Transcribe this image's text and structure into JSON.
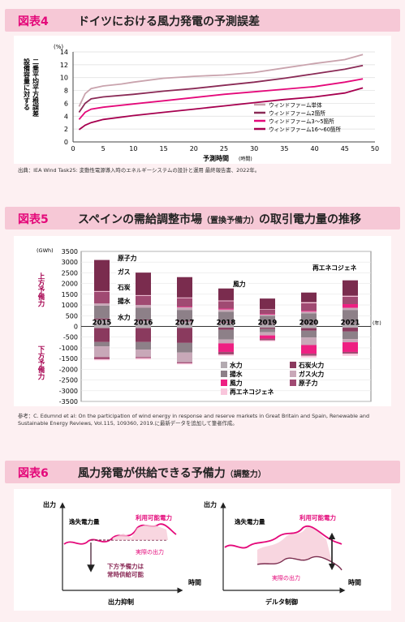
{
  "fig4": {
    "number": "図表4",
    "title": "ドイツにおける風力発電の予測誤差",
    "source": "出典：IEA Wind Task25: 変動性電源導入時のエネルギーシステムの設計と運用 最終報告書、2022年。",
    "chart_data": {
      "type": "line",
      "ylabel": "二乗平均平方根誤差 設備容量に対する",
      "yunit": "(%)",
      "xlabel": "予測時間",
      "xunit": "(時間)",
      "xlim": [
        0,
        50
      ],
      "ylim": [
        0,
        14
      ],
      "xticks": [
        0,
        5,
        10,
        15,
        20,
        25,
        30,
        35,
        40,
        45,
        50
      ],
      "yticks": [
        0,
        2,
        4,
        6,
        8,
        10,
        12,
        14
      ],
      "legend_position": "bottom-right",
      "series": [
        {
          "name": "ウィンドファーム単体",
          "color": "#c9a3ad",
          "points": [
            [
              1,
              5.5
            ],
            [
              2,
              7.5
            ],
            [
              3,
              8.3
            ],
            [
              5,
              8.7
            ],
            [
              8,
              9.0
            ],
            [
              10,
              9.3
            ],
            [
              15,
              9.9
            ],
            [
              20,
              10.2
            ],
            [
              25,
              10.4
            ],
            [
              30,
              10.8
            ],
            [
              35,
              11.5
            ],
            [
              40,
              12.2
            ],
            [
              45,
              12.8
            ],
            [
              48,
              13.6
            ]
          ]
        },
        {
          "name": "ウィンドファーム2箇所",
          "color": "#8a2a56",
          "points": [
            [
              1,
              4.6
            ],
            [
              2,
              6.0
            ],
            [
              3,
              6.7
            ],
            [
              5,
              7.0
            ],
            [
              10,
              7.4
            ],
            [
              15,
              7.9
            ],
            [
              20,
              8.3
            ],
            [
              25,
              8.8
            ],
            [
              30,
              9.3
            ],
            [
              35,
              9.9
            ],
            [
              40,
              10.6
            ],
            [
              45,
              11.3
            ],
            [
              48,
              11.9
            ]
          ]
        },
        {
          "name": "ウィンドファーム3～5箇所",
          "color": "#e4097a",
          "points": [
            [
              1,
              3.5
            ],
            [
              2,
              4.6
            ],
            [
              3,
              5.1
            ],
            [
              5,
              5.4
            ],
            [
              10,
              5.9
            ],
            [
              15,
              6.4
            ],
            [
              20,
              6.9
            ],
            [
              25,
              7.4
            ],
            [
              30,
              7.8
            ],
            [
              35,
              8.2
            ],
            [
              40,
              8.6
            ],
            [
              45,
              9.3
            ],
            [
              48,
              9.8
            ]
          ]
        },
        {
          "name": "ウィンドファーム16～60箇所",
          "color": "#a6004f",
          "points": [
            [
              1,
              1.9
            ],
            [
              2,
              2.6
            ],
            [
              3,
              3.0
            ],
            [
              5,
              3.5
            ],
            [
              10,
              4.1
            ],
            [
              15,
              4.6
            ],
            [
              20,
              5.1
            ],
            [
              25,
              5.6
            ],
            [
              30,
              6.1
            ],
            [
              35,
              6.6
            ],
            [
              40,
              7.0
            ],
            [
              45,
              7.6
            ],
            [
              48,
              8.4
            ]
          ]
        }
      ]
    }
  },
  "fig5": {
    "number": "図表5",
    "title": "スペインの需給調整市場",
    "title_small": "（置換予備力）",
    "title_tail": "の取引電力量の推移",
    "source": "参考：C. Edumnd et al: On the participation of wind energy in response and reserve markets in Great Britain and Spain, Renewable and Sustainable Energy Reviews, Vol.115, 109360, 2019.に最新データを追加して筆者作成。",
    "chart_data": {
      "type": "bar",
      "stacked": true,
      "yunit": "(GWh)",
      "xunit": "(年)",
      "ylim": [
        -3500,
        3500
      ],
      "yticks": [
        3500,
        3000,
        2500,
        2000,
        1500,
        1000,
        500,
        0,
        -500,
        -1000,
        -1500,
        -2000,
        -2500,
        -3000,
        -3500
      ],
      "upper_label": "上方予備力",
      "lower_label": "下方予備力",
      "categories": [
        "2015",
        "2016",
        "2017",
        "2018",
        "2019",
        "2020",
        "2021"
      ],
      "series": [
        {
          "name": "水力",
          "color": "#b3aab0",
          "up": [
            320,
            280,
            230,
            180,
            120,
            120,
            160
          ],
          "down": [
            -80,
            -80,
            -70,
            -60,
            -60,
            -80,
            -60
          ]
        },
        {
          "name": "石炭火力",
          "color": "#8a3a5e",
          "up": [
            50,
            40,
            40,
            30,
            20,
            10,
            10
          ],
          "down": [
            -650,
            -650,
            -700,
            -100,
            -60,
            -120,
            -180
          ]
        },
        {
          "name": "揚水",
          "color": "#8d8088",
          "up": [
            600,
            550,
            500,
            480,
            350,
            480,
            600
          ],
          "down": [
            -200,
            -350,
            -450,
            -450,
            -150,
            -320,
            -350
          ]
        },
        {
          "name": "ガス火力",
          "color": "#c8a8b8",
          "up": [
            100,
            130,
            120,
            100,
            60,
            80,
            100
          ],
          "down": [
            -500,
            -350,
            -450,
            -180,
            -150,
            -350,
            -150
          ]
        },
        {
          "name": "風力",
          "color": "#ee1f82",
          "up": [
            0,
            0,
            30,
            40,
            30,
            40,
            170
          ],
          "down": [
            0,
            0,
            0,
            -400,
            -150,
            -400,
            -450
          ]
        },
        {
          "name": "原子力",
          "color": "#a04a72",
          "up": [
            550,
            430,
            400,
            350,
            200,
            350,
            350
          ],
          "down": [
            -100,
            -50,
            -50,
            -120,
            -80,
            -100,
            -80
          ]
        },
        {
          "name": "再エネコジェネ",
          "color": "#f9c6dc",
          "up": [
            30,
            30,
            30,
            30,
            20,
            50,
            40
          ],
          "down": [
            -50,
            -60,
            -50,
            -60,
            -40,
            -80,
            -100
          ]
        },
        {
          "name": "ガス",
          "color": "#7a2c4e",
          "up": [
            1450,
            1050,
            950,
            560,
            500,
            450,
            720
          ],
          "down": [
            0,
            0,
            0,
            0,
            0,
            0,
            0
          ]
        }
      ],
      "annotations": [
        "原子力",
        "ガス",
        "石炭",
        "揚水",
        "水力",
        "風力",
        "再エネコジェネ"
      ],
      "legend": [
        "水力",
        "石炭火力",
        "揚水",
        "ガス火力",
        "風力",
        "原子力",
        "再エネコジェネ"
      ]
    }
  },
  "fig6": {
    "number": "図表6",
    "title": "風力発電が供給できる予備力",
    "title_small": "（調整力）",
    "left": {
      "y_axis": "出力",
      "x_axis": "時間",
      "caption": "出力抑制",
      "lost": "逸失電力量",
      "available": "利用可能電力",
      "actual": "実際の出力",
      "down_reserve_1": "下方予備力は",
      "down_reserve_2": "常時供給可能"
    },
    "right": {
      "y_axis": "出力",
      "x_axis": "時間",
      "caption": "デルタ制御",
      "lost": "逸失電力量",
      "available": "利用可能電力",
      "actual": "実際の出力"
    }
  }
}
